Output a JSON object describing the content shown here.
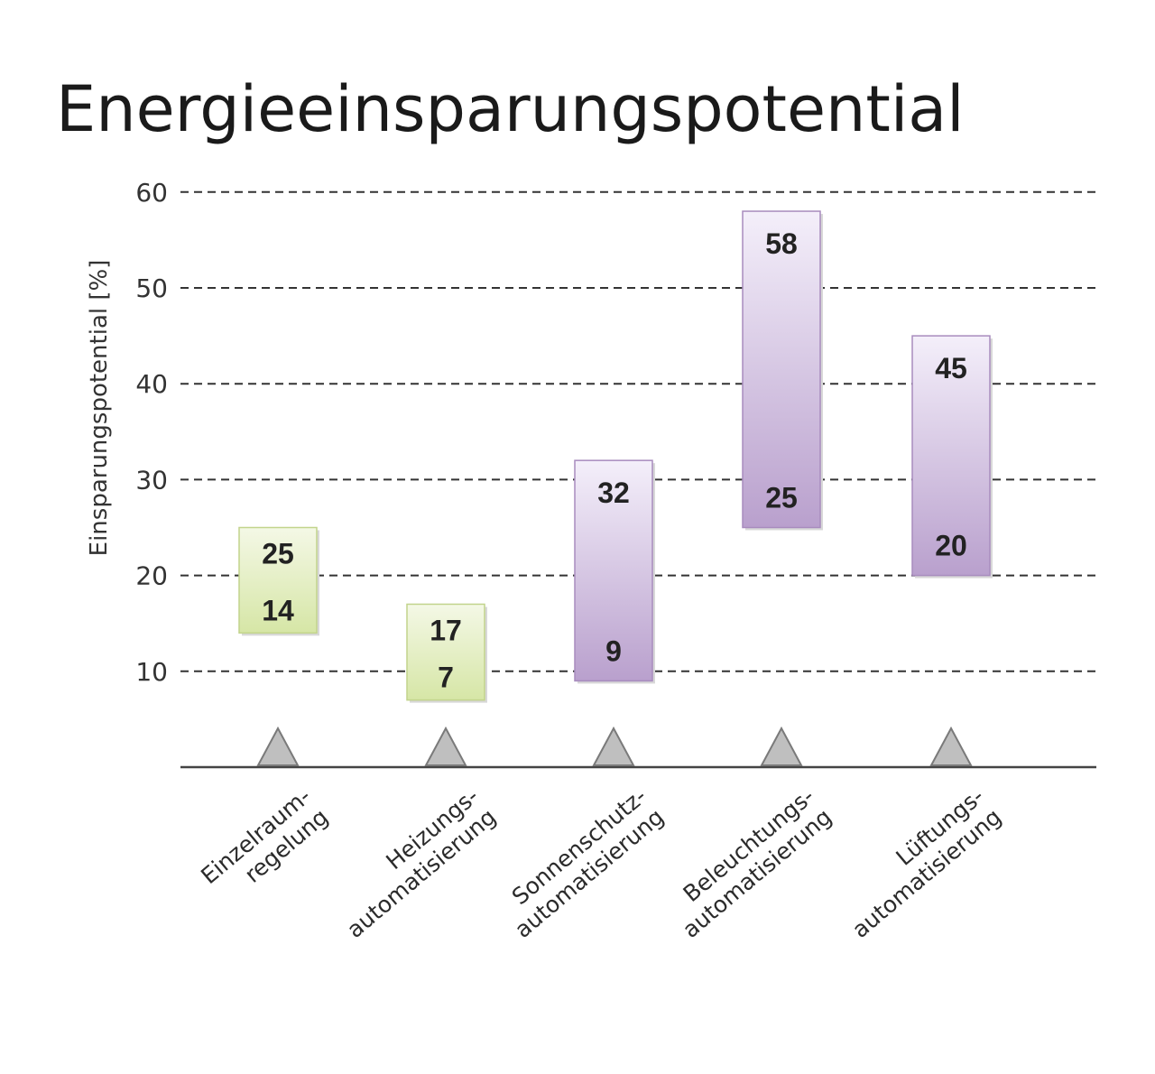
{
  "chart_data": {
    "type": "bar",
    "title": "Energieeinsparungspotential",
    "ylabel": "Einsparungspotential [%]",
    "ylim": [
      0,
      60
    ],
    "yticks": [
      10,
      20,
      30,
      40,
      50,
      60
    ],
    "grid": true,
    "categories": [
      [
        "Einzelraum-",
        "regelung"
      ],
      [
        "Heizungs-",
        "automatisierung"
      ],
      [
        "Sonnenschutz-",
        "automatisierung"
      ],
      [
        "Beleuchtungs-",
        "automatisierung"
      ],
      [
        "Lüftungs-",
        "automatisierung"
      ]
    ],
    "series": [
      {
        "ranges": [
          {
            "low": 14,
            "high": 25
          },
          {
            "low": 7,
            "high": 17
          },
          {
            "low": 9,
            "high": 32
          },
          {
            "low": 25,
            "high": 58
          },
          {
            "low": 20,
            "high": 45
          }
        ]
      }
    ],
    "colors": {
      "green_top": "#f4f8e6",
      "green_bottom": "#d6e6a6",
      "green_stroke": "#c2d48c",
      "purple_top": "#f4effa",
      "purple_bottom": "#b9a0cd",
      "purple_stroke": "#a88cbe",
      "marker": "#bfbfbf"
    }
  }
}
